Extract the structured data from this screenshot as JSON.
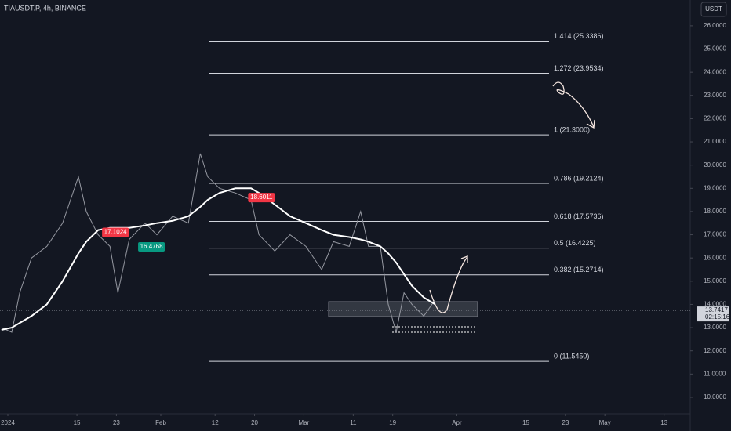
{
  "chart_data": {
    "type": "line",
    "title": "TIAUSDT.P, 4h, BINANCE",
    "currency_button": "USDT",
    "x": [
      -0.3,
      1.8,
      3.4,
      5.8,
      8.9,
      12.1,
      15.3,
      16.9,
      19.3,
      21.7,
      23.3,
      25.6,
      28.8,
      31.2,
      34.4,
      37.6,
      40.0,
      41.5,
      43.9,
      47.1,
      50.3,
      51.9,
      55.1,
      58.2,
      61.4,
      64.6,
      67.0,
      70.2,
      72.5,
      74.1,
      76.5,
      78.1,
      79.7,
      81.3,
      82.9,
      85.3,
      87.6
    ],
    "series": [
      {
        "color": "#9598a1",
        "values": [
          13.0,
          12.8,
          14.5,
          16.0,
          16.5,
          17.5,
          19.5,
          18.0,
          17.0,
          16.5,
          14.5,
          16.8,
          17.5,
          17.0,
          17.8,
          17.5,
          20.5,
          19.5,
          19.0,
          18.8,
          18.5,
          17.0,
          16.3,
          17.0,
          16.5,
          15.5,
          16.7,
          16.5,
          18.0,
          16.5,
          16.5,
          14.0,
          12.8,
          14.5,
          14.0,
          13.5,
          14.2
        ]
      },
      {
        "color": "#ffffff",
        "values": [
          12.9,
          13.0,
          13.2,
          13.5,
          14.0,
          15.0,
          16.2,
          16.7,
          17.2,
          17.3,
          17.3,
          17.3,
          17.4,
          17.5,
          17.6,
          17.8,
          18.2,
          18.5,
          18.8,
          19.0,
          19.0,
          18.8,
          18.3,
          17.8,
          17.5,
          17.2,
          17.0,
          16.9,
          16.8,
          16.7,
          16.5,
          16.2,
          15.8,
          15.3,
          14.8,
          14.3,
          14.0
        ]
      }
    ],
    "fib_levels": [
      {
        "label": "1.414 (25.3386)",
        "value": 25.3386
      },
      {
        "label": "1.272 (23.9534)",
        "value": 23.9534
      },
      {
        "label": "1 (21.3000)",
        "value": 21.3
      },
      {
        "label": "0.786 (19.2124)",
        "value": 19.2124
      },
      {
        "label": "0.618 (17.5736)",
        "value": 17.5736
      },
      {
        "label": "0.5 (16.4225)",
        "value": 16.4225
      },
      {
        "label": "0.382 (15.2714)",
        "value": 15.2714
      },
      {
        "label": "0 (11.5450)",
        "value": 11.545
      }
    ],
    "price_tags": [
      {
        "x": 22.8,
        "value": 17.1024,
        "color": "#f23645"
      },
      {
        "x": 30.1,
        "value": 16.4768,
        "color": "#089981"
      },
      {
        "x": 52.4,
        "value": 18.6011,
        "color": "#f23645"
      }
    ],
    "current_price": 13.7417,
    "countdown": "02:15:16",
    "xlim": [
      -0.59,
      139.3
    ],
    "xticks": [
      {
        "value": 1,
        "label": "2024"
      },
      15,
      23,
      {
        "value": 32,
        "label": "Feb"
      },
      {
        "value": 43,
        "label": "12"
      },
      {
        "value": 51,
        "label": "20"
      },
      {
        "value": 61,
        "label": "Mar"
      },
      {
        "value": 71,
        "label": "11"
      },
      {
        "value": 79,
        "label": "19"
      },
      {
        "value": 92,
        "label": "Apr"
      },
      {
        "value": 106,
        "label": "15"
      },
      {
        "value": 114,
        "label": "23"
      },
      {
        "value": 122,
        "label": "May"
      },
      {
        "value": 134,
        "label": "13"
      }
    ],
    "ylim": [
      9.29,
      27.11
    ],
    "yticks": [
      {
        "value": 10,
        "label": "10.0000"
      },
      {
        "value": 11,
        "label": "11.0000"
      },
      {
        "value": 12,
        "label": "12.0000"
      },
      {
        "value": 13,
        "label": "13.0000"
      },
      {
        "value": 14,
        "label": "14.0000"
      },
      {
        "value": 15,
        "label": "15.0000"
      },
      {
        "value": 16,
        "label": "16.0000"
      },
      {
        "value": 17,
        "label": "17.0000"
      },
      {
        "value": 18,
        "label": "18.0000"
      },
      {
        "value": 19,
        "label": "19.0000"
      },
      {
        "value": 20,
        "label": "20.0000"
      },
      {
        "value": 21,
        "label": "21.0000"
      },
      {
        "value": 22,
        "label": "22.0000"
      },
      {
        "value": 23,
        "label": "23.0000"
      },
      {
        "value": 24,
        "label": "24.0000"
      },
      {
        "value": 25,
        "label": "25.0000"
      },
      {
        "value": 26,
        "label": "26.0000"
      }
    ]
  }
}
